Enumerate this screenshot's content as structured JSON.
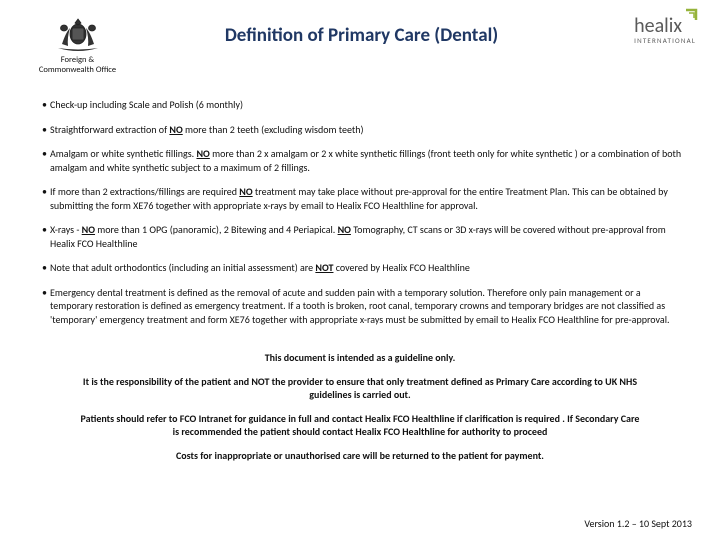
{
  "header": {
    "left_logo_line1": "Foreign &",
    "left_logo_line2": "Commonwealth Office",
    "title": "Definition of Primary Care (Dental)",
    "right_logo_text": "healix",
    "right_logo_sub": "INTERNATIONAL"
  },
  "bullets": [
    "Check-up including Scale and Polish (6 monthly)",
    "Straightforward extraction of <b><u>NO</u></b> more than 2 teeth (excluding wisdom teeth)",
    "Amalgam or white synthetic fillings. <b><u>NO</u></b> more than 2 x amalgam or 2 x white synthetic fillings (front teeth only for white synthetic ) or a combination  of both amalgam and white synthetic  subject to a maximum of 2 fillings.",
    "If more than 2 extractions/fillings are required <b><u>NO</u></b> treatment may take place without pre-approval for the entire Treatment Plan. This can be obtained by submitting  the form XE76 together with appropriate x-rays by email to Healix FCO Healthline for approval.",
    "X-rays - <b><u>NO</u></b> more than 1 OPG (panoramic), 2 Bitewing and 4 Periapical.  <b><u>NO</u></b> Tomography, CT scans or 3D x-rays will be covered without pre-approval from Healix FCO Healthline",
    "Note that adult orthodontics  (including an initial assessment) are <b><u>NOT</u></b> covered by Healix FCO Healthline",
    "Emergency dental treatment is defined as the removal of acute and sudden pain with a temporary solution. Therefore only pain management or a temporary restoration is defined as emergency treatment.  If a tooth is broken, root canal, temporary crowns and temporary bridges are not classified as 'temporary' emergency treatment  and form XE76 together with appropriate x-rays must be submitted by email to Healix FCO Healthline for pre-approval."
  ],
  "footer": [
    "This document is intended as a guideline only.",
    "It is the responsibility of the patient and NOT the provider to ensure that only treatment defined as Primary Care according to UK NHS guidelines is carried out.",
    "Patients should refer to FCO Intranet for guidance in full and contact Healix FCO Healthline if clarification is required . If Secondary Care is recommended  the patient should contact Healix FCO Healthline for authority to proceed",
    "Costs for inappropriate or unauthorised care will be returned to the patient for payment."
  ],
  "version": "Version 1.2 – 10 Sept 2013",
  "colors": {
    "title": "#203864",
    "healix_green": "#96b33a",
    "text": "#111111"
  }
}
